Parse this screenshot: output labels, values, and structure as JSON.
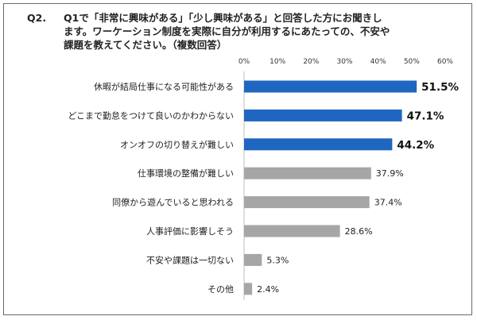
{
  "title": {
    "line1_prefix": "Q2.",
    "line1": "Q1で「非常に興味がある」「少し興味がある」と回答した方にお聞きし",
    "line2": "ます。ワーケーション制度を実際に自分が利用するにあたっての、不安や",
    "line3": "課題を教えてください。（複数回答）"
  },
  "chart_data": {
    "type": "bar",
    "orientation": "horizontal",
    "categories": [
      "休暇が結局仕事になる可能性がある",
      "どこまで勤怠をつけて良いのかわからない",
      "オンオフの切り替えが難しい",
      "仕事環境の整備が難しい",
      "同僚から遊んでいると思われる",
      "人事評価に影響しそう",
      "不安や課題は一切ない",
      "その他"
    ],
    "values": [
      51.5,
      47.1,
      44.2,
      37.9,
      37.4,
      28.6,
      5.3,
      2.4
    ],
    "value_labels": [
      "51.5%",
      "47.1%",
      "44.2%",
      "37.9%",
      "37.4%",
      "28.6%",
      "5.3%",
      "2.4%"
    ],
    "xlim": [
      0,
      60
    ],
    "xticks": [
      "0%",
      "10%",
      "20%",
      "30%",
      "40%",
      "50%",
      "60%"
    ],
    "highlight_count": 3,
    "colors": {
      "highlight": "#1f66c1",
      "other": "#a6a6a6"
    },
    "grid": false
  }
}
